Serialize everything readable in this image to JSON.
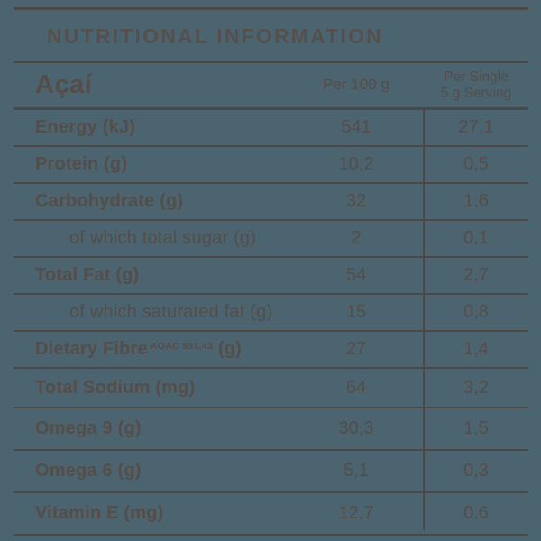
{
  "colors": {
    "background": "#4C646F",
    "text": "#544D49",
    "rule": "#4B4845"
  },
  "title": "NUTRITIONAL INFORMATION",
  "table": {
    "product": "Açaí",
    "col1_header": "Per 100 g",
    "col2_header_line1": "Per Single",
    "col2_header_line2": "5 g Serving",
    "rows": [
      {
        "label": "Energy (kJ)",
        "per100": "541",
        "serving": "27,1",
        "sub": false
      },
      {
        "label": "Protein (g)",
        "per100": "10,2",
        "serving": "0,5",
        "sub": false
      },
      {
        "label": "Carbohydrate (g)",
        "per100": "32",
        "serving": "1,6",
        "sub": false
      },
      {
        "label": "of which total sugar (g)",
        "per100": "2",
        "serving": "0,1",
        "sub": true
      },
      {
        "label": "Total Fat (g)",
        "per100": "54",
        "serving": "2,7",
        "sub": false
      },
      {
        "label": "of which saturated fat (g)",
        "per100": "15",
        "serving": "0,8",
        "sub": true
      },
      {
        "label": "Dietary Fibre",
        "label_sup": "AOAC 991,43",
        "label_suffix": " (g)",
        "per100": "27",
        "serving": "1,4",
        "sub": false
      },
      {
        "label": "Total Sodium (mg)",
        "per100": "64",
        "serving": "3,2",
        "sub": false
      },
      {
        "label": "Omega 9 (g)",
        "per100": "30,3",
        "serving": "1,5",
        "sub": false
      },
      {
        "label": "Omega 6 (g)",
        "per100": "5,1",
        "serving": "0,3",
        "sub": false
      },
      {
        "label": "Vitamin E (mg)",
        "per100": "12,7",
        "serving": "0,6",
        "sub": false
      }
    ]
  }
}
